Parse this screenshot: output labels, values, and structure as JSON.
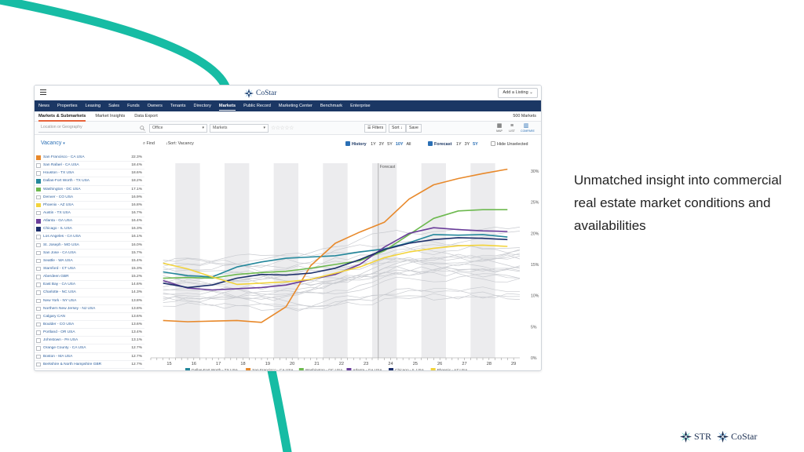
{
  "app": {
    "brand": "CoStar",
    "add_listing": "Add a Listing",
    "nav": [
      "News",
      "Properties",
      "Leasing",
      "Sales",
      "Funds",
      "Owners",
      "Tenants",
      "Directory",
      "Markets",
      "Public Record",
      "Marketing Center",
      "Benchmark",
      "Enterprise"
    ],
    "nav_active": "Markets",
    "sub_tabs": [
      "Markets & Submarkets",
      "Market Insights",
      "Data Export"
    ],
    "sub_tab_active": "Markets & Submarkets",
    "market_count": "500 Markets"
  },
  "filter_bar": {
    "location_placeholder": "Location or Geography",
    "property_type": "Office",
    "market_type": "Markets",
    "stars": "☆☆☆☆☆",
    "filters": "Filters",
    "sort": "Sort",
    "save": "Save",
    "views": [
      "MAP",
      "LIST",
      "COMPARE"
    ]
  },
  "controls": {
    "metric": "Vacancy",
    "find": "Find",
    "sort_label": "Sort: Vacancy",
    "history_label": "History",
    "history_options": [
      "1Y",
      "3Y",
      "5Y",
      "10Y",
      "All"
    ],
    "history_selected": "10Y",
    "forecast_label": "Forecast",
    "forecast_options": [
      "1Y",
      "3Y",
      "5Y"
    ],
    "forecast_selected": "5Y",
    "hide_unselected": "Hide Unselected"
  },
  "markets": [
    {
      "name": "San Francisco - CA USA",
      "value": "22.3%",
      "color": "#e8892b"
    },
    {
      "name": "San Rafael - CA USA",
      "value": "18.4%",
      "color": ""
    },
    {
      "name": "Houston - TX USA",
      "value": "18.6%",
      "color": ""
    },
    {
      "name": "Dallas-Fort Worth - TX USA",
      "value": "18.2%",
      "color": "#23879b"
    },
    {
      "name": "Washington - DC USA",
      "value": "17.1%",
      "color": "#6db94f"
    },
    {
      "name": "Denver - CO USA",
      "value": "16.9%",
      "color": ""
    },
    {
      "name": "Phoenix - AZ USA",
      "value": "16.8%",
      "color": "#f2d33b"
    },
    {
      "name": "Austin - TX USA",
      "value": "16.7%",
      "color": ""
    },
    {
      "name": "Atlanta - GA USA",
      "value": "16.4%",
      "color": "#6a3d9a"
    },
    {
      "name": "Chicago - IL USA",
      "value": "16.3%",
      "color": "#1c2f6b"
    },
    {
      "name": "Los Angeles - CA USA",
      "value": "16.1%",
      "color": ""
    },
    {
      "name": "St. Joseph - MO USA",
      "value": "16.0%",
      "color": ""
    },
    {
      "name": "San Jose - CA USA",
      "value": "15.7%",
      "color": ""
    },
    {
      "name": "Seattle - WA USA",
      "value": "15.4%",
      "color": ""
    },
    {
      "name": "Stamford - CT USA",
      "value": "15.3%",
      "color": ""
    },
    {
      "name": "Aberdeen GBR",
      "value": "15.2%",
      "color": ""
    },
    {
      "name": "East Bay - CA USA",
      "value": "14.6%",
      "color": ""
    },
    {
      "name": "Charlotte - NC USA",
      "value": "14.3%",
      "color": ""
    },
    {
      "name": "New York - NY USA",
      "value": "13.8%",
      "color": ""
    },
    {
      "name": "Northern New Jersey - NJ USA",
      "value": "13.8%",
      "color": ""
    },
    {
      "name": "Calgary CAN",
      "value": "13.6%",
      "color": ""
    },
    {
      "name": "Boulder - CO USA",
      "value": "13.6%",
      "color": ""
    },
    {
      "name": "Portland - OR USA",
      "value": "13.4%",
      "color": ""
    },
    {
      "name": "Johnstown - PA USA",
      "value": "13.1%",
      "color": ""
    },
    {
      "name": "Orange County - CA USA",
      "value": "12.7%",
      "color": ""
    },
    {
      "name": "Boston - MA USA",
      "value": "12.7%",
      "color": ""
    },
    {
      "name": "Berkshire & North Hampshire GBR",
      "value": "12.7%",
      "color": ""
    }
  ],
  "chart_data": {
    "type": "line",
    "ylabel": "Vacancy",
    "ylim": [
      0,
      30
    ],
    "yticks": [
      "0%",
      "5%",
      "10%",
      "15%",
      "20%",
      "25%",
      "30%"
    ],
    "x": [
      "15",
      "16",
      "17",
      "18",
      "19",
      "20",
      "21",
      "22",
      "23",
      "24",
      "25",
      "26",
      "27",
      "28",
      "29"
    ],
    "forecast_label": "Forecast",
    "forecast_start": 24,
    "series": [
      {
        "name": "Dallas-Fort Worth - TX USA",
        "color": "#23879b",
        "values": [
          13.8,
          13.2,
          13.0,
          14.6,
          15.4,
          16.0,
          16.2,
          16.4,
          17.0,
          17.5,
          18.5,
          19.8,
          19.7,
          19.8,
          19.4
        ]
      },
      {
        "name": "San Francisco - CA USA",
        "color": "#e8892b",
        "values": [
          6.0,
          5.8,
          5.9,
          6.0,
          5.7,
          8.2,
          14.8,
          18.4,
          20.2,
          21.8,
          25.5,
          27.8,
          28.8,
          29.6,
          30.3
        ]
      },
      {
        "name": "Washington - DC USA",
        "color": "#6db94f",
        "values": [
          12.8,
          12.9,
          12.8,
          13.4,
          13.7,
          13.9,
          14.4,
          15.0,
          15.6,
          17.2,
          19.8,
          22.4,
          23.6,
          23.8,
          23.8
        ]
      },
      {
        "name": "Atlanta - GA USA",
        "color": "#6a3d9a",
        "values": [
          12.4,
          11.2,
          10.9,
          11.1,
          11.3,
          11.7,
          12.6,
          13.4,
          15.0,
          17.8,
          20.0,
          20.9,
          20.6,
          20.4,
          20.3
        ]
      },
      {
        "name": "Chicago - IL USA",
        "color": "#1c2f6b",
        "values": [
          12.0,
          11.3,
          11.7,
          12.8,
          13.4,
          13.3,
          13.6,
          14.4,
          15.8,
          17.4,
          18.4,
          19.0,
          19.3,
          19.2,
          19.0
        ]
      },
      {
        "name": "Phoenix - AZ USA",
        "color": "#f2d33b",
        "values": [
          15.2,
          14.3,
          13.0,
          11.8,
          12.0,
          12.2,
          12.6,
          13.6,
          14.6,
          16.1,
          17.0,
          17.6,
          18.0,
          18.1,
          17.9
        ]
      }
    ],
    "background_series_count": 21,
    "legend_placement": "bottom"
  },
  "headline": "Unmatched insight into commercial real estate market conditions and availabilities",
  "bottom_logos": [
    "STR",
    "CoStar"
  ],
  "colors": {
    "accent_curve": "#17bca4",
    "nav": "#1b3764",
    "link": "#2a6fb5"
  }
}
